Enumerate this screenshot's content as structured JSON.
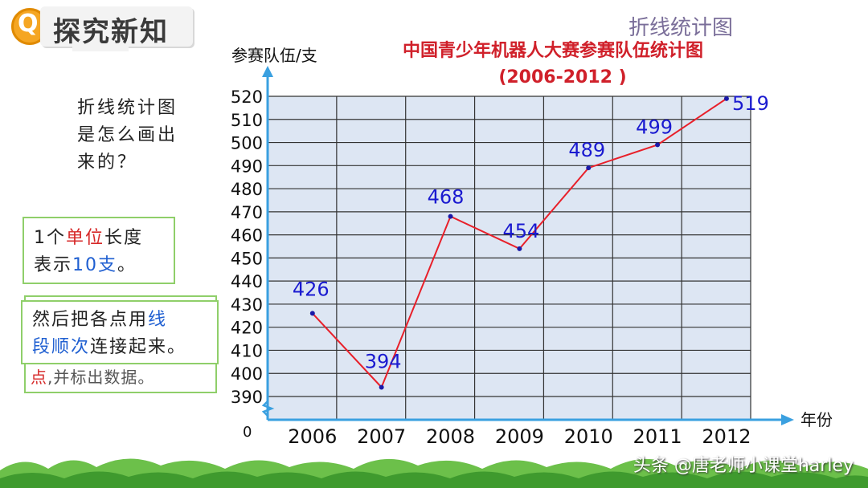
{
  "header": {
    "logo_letter": "Q",
    "section_title": "探究新知",
    "topic": "折线统计图"
  },
  "left_panel": {
    "question_lines": [
      "折线统计图",
      "是怎么画出",
      "来的？"
    ],
    "unit_note": {
      "prefix": "1个",
      "highlight_red": "单位",
      "middle": "长度",
      "line2_prefix": "表示",
      "highlight_blue": "10支",
      "suffix": "。"
    },
    "step_back_text": {
      "highlight_red": "点",
      "rest": ",并标出数据。"
    },
    "step_front": {
      "line1_prefix": "然后把各点用",
      "line1_blue": "线",
      "line2_blue": "段顺次",
      "line2_rest": "连接起来。"
    }
  },
  "chart_data": {
    "type": "line",
    "title": "中国青少年机器人大赛参赛队伍统计图",
    "subtitle": "(2006-2012 )",
    "ylabel": "参赛队伍/支",
    "xlabel": "年份",
    "origin_label": "0",
    "categories": [
      "2006",
      "2007",
      "2008",
      "2009",
      "2010",
      "2011",
      "2012"
    ],
    "values": [
      426,
      394,
      468,
      454,
      489,
      499,
      519
    ],
    "yticks": [
      390,
      400,
      410,
      420,
      430,
      440,
      450,
      460,
      470,
      480,
      490,
      500,
      510,
      520
    ],
    "ylim": [
      390,
      520
    ],
    "axis_break": true,
    "grid": true,
    "colors": {
      "line": "#e8202a",
      "point": "#1a1aa8",
      "data_label": "#1a1ad0",
      "grid_fill": "#dde6f3",
      "grid_line": "#333333",
      "axis": "#3aa0e0",
      "title": "#d0202a"
    }
  },
  "watermark": "头条 @唐老师小课堂harley"
}
